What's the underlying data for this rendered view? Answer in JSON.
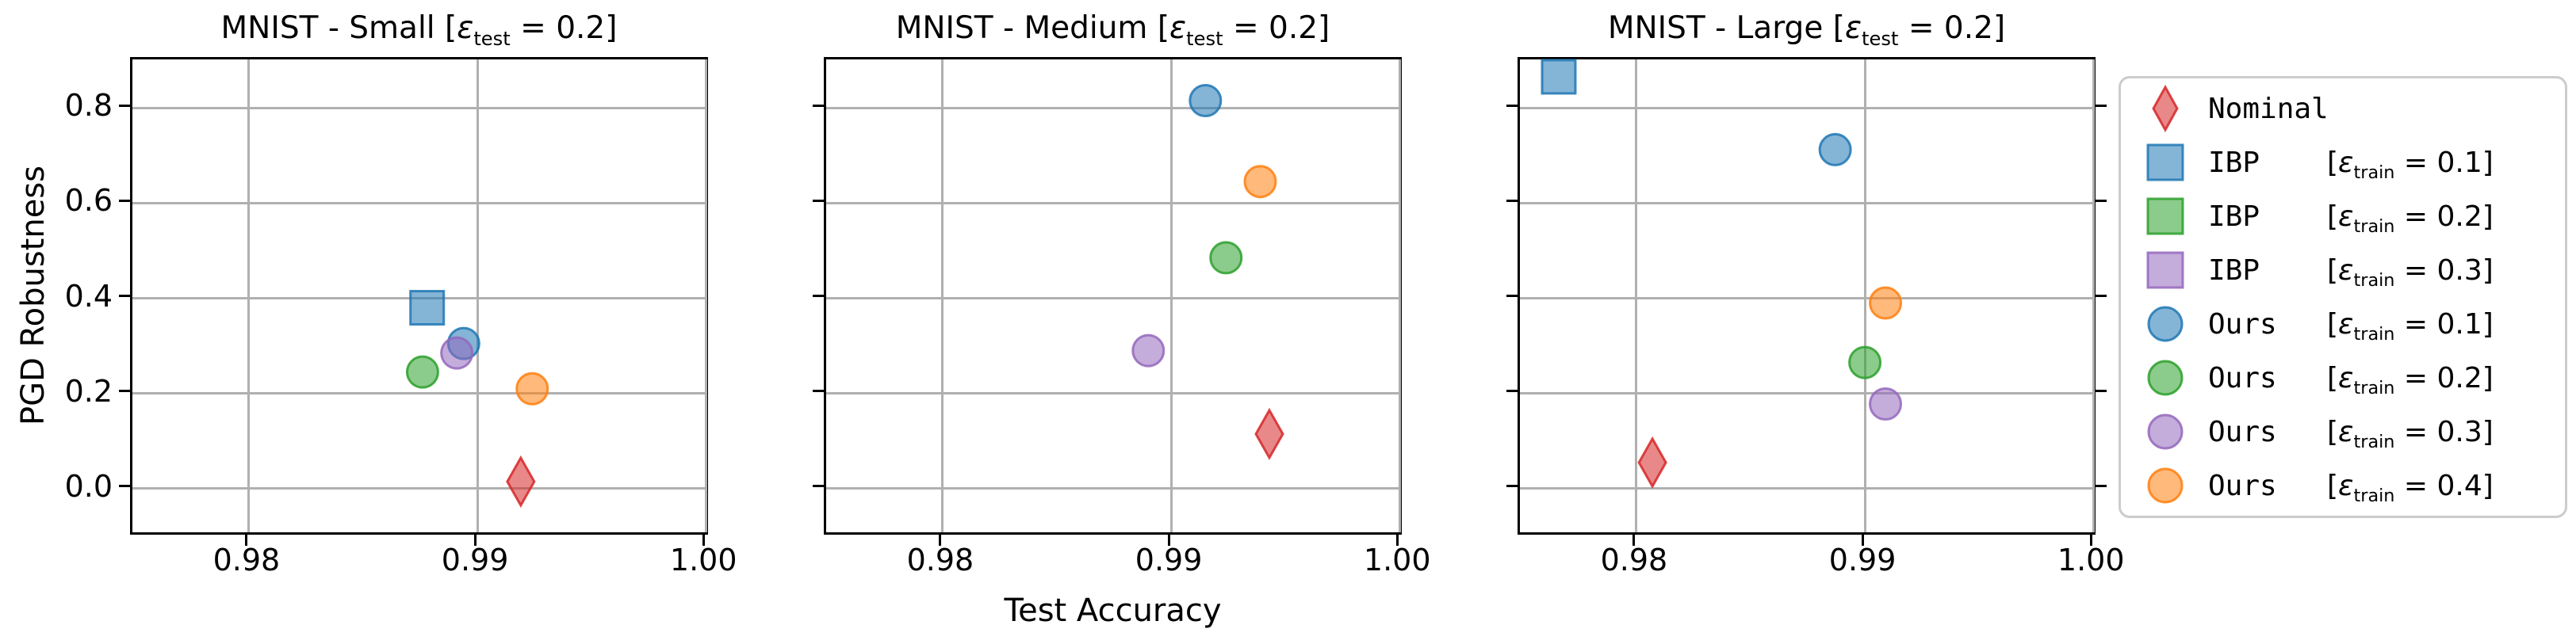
{
  "figure": {
    "background": "#ffffff"
  },
  "colors": {
    "blue": "#1f77b4",
    "orange": "#ff7f0e",
    "green": "#2ca02c",
    "red": "#d62728",
    "purple": "#9467bd",
    "grid": "#b0b0b0",
    "spine": "#000000",
    "legend_border": "#cccccc"
  },
  "fmt": {
    "lbrack": "[",
    "rbrack": "]",
    "equals": " = ",
    "eps": "ε"
  },
  "axis": {
    "x_label": "Test Accuracy",
    "y_label": "PGD Robustness",
    "x_ticks": [
      {
        "value": 0.98,
        "label": "0.98"
      },
      {
        "value": 0.99,
        "label": "0.99"
      },
      {
        "value": 1.0,
        "label": "1.00"
      }
    ],
    "y_ticks": [
      {
        "value": 0.0,
        "label": "0.0"
      },
      {
        "value": 0.2,
        "label": "0.2"
      },
      {
        "value": 0.4,
        "label": "0.4"
      },
      {
        "value": 0.6,
        "label": "0.6"
      },
      {
        "value": 0.8,
        "label": "0.8"
      }
    ]
  },
  "legend": {
    "entries": [
      {
        "name": "Nominal",
        "marker": "diamond",
        "color": "#d62728",
        "eps_sub": null,
        "eps_val": null
      },
      {
        "name": "IBP",
        "marker": "square",
        "color": "#1f77b4",
        "eps_sub": "train",
        "eps_val": "0.1"
      },
      {
        "name": "IBP",
        "marker": "square",
        "color": "#2ca02c",
        "eps_sub": "train",
        "eps_val": "0.2"
      },
      {
        "name": "IBP",
        "marker": "square",
        "color": "#9467bd",
        "eps_sub": "train",
        "eps_val": "0.3"
      },
      {
        "name": "Ours",
        "marker": "circle",
        "color": "#1f77b4",
        "eps_sub": "train",
        "eps_val": "0.1"
      },
      {
        "name": "Ours",
        "marker": "circle",
        "color": "#2ca02c",
        "eps_sub": "train",
        "eps_val": "0.2"
      },
      {
        "name": "Ours",
        "marker": "circle",
        "color": "#9467bd",
        "eps_sub": "train",
        "eps_val": "0.3"
      },
      {
        "name": "Ours",
        "marker": "circle",
        "color": "#ff7f0e",
        "eps_sub": "train",
        "eps_val": "0.4"
      }
    ]
  },
  "chart_data": {
    "type": "scatter",
    "xlabel": "Test Accuracy",
    "ylabel": "PGD Robustness",
    "xlim": [
      0.975,
      1.0
    ],
    "ylim": [
      -0.1,
      0.9
    ],
    "grid": true,
    "legend_position": "right-outside",
    "subplots": [
      {
        "title": "MNIST - Small [ε_test = 0.2]",
        "title_name": "MNIST - Small",
        "eps_sub": "test",
        "eps_val": "0.2",
        "show_y_tick_labels": true,
        "right_ticks": false,
        "series": [
          {
            "name": "Nominal",
            "marker": "diamond",
            "color": "#d62728",
            "points": [
              [
                0.9919,
                0.015
              ]
            ]
          },
          {
            "name": "IBP [eps_train = 0.1]",
            "marker": "square",
            "color": "#1f77b4",
            "points": [
              [
                0.9878,
                0.38
              ]
            ]
          },
          {
            "name": "IBP [eps_train = 0.2]",
            "marker": "square",
            "color": "#2ca02c",
            "points": []
          },
          {
            "name": "IBP [eps_train = 0.3]",
            "marker": "square",
            "color": "#9467bd",
            "points": []
          },
          {
            "name": "Ours [eps_train = 0.1]",
            "marker": "circle",
            "color": "#1f77b4",
            "points": [
              [
                0.9894,
                0.305
              ]
            ]
          },
          {
            "name": "Ours [eps_train = 0.2]",
            "marker": "circle",
            "color": "#2ca02c",
            "points": [
              [
                0.9876,
                0.245
              ]
            ]
          },
          {
            "name": "Ours [eps_train = 0.3]",
            "marker": "circle",
            "color": "#9467bd",
            "points": [
              [
                0.9891,
                0.285
              ]
            ]
          },
          {
            "name": "Ours [eps_train = 0.4]",
            "marker": "circle",
            "color": "#ff7f0e",
            "points": [
              [
                0.9924,
                0.21
              ]
            ]
          }
        ]
      },
      {
        "title": "MNIST - Medium [ε_test = 0.2]",
        "title_name": "MNIST - Medium",
        "eps_sub": "test",
        "eps_val": "0.2",
        "show_y_tick_labels": false,
        "right_ticks": false,
        "series": [
          {
            "name": "Nominal",
            "marker": "diamond",
            "color": "#d62728",
            "points": [
              [
                0.9943,
                0.115
              ]
            ]
          },
          {
            "name": "IBP [eps_train = 0.1]",
            "marker": "square",
            "color": "#1f77b4",
            "points": []
          },
          {
            "name": "IBP [eps_train = 0.2]",
            "marker": "square",
            "color": "#2ca02c",
            "points": []
          },
          {
            "name": "IBP [eps_train = 0.3]",
            "marker": "square",
            "color": "#9467bd",
            "points": []
          },
          {
            "name": "Ours [eps_train = 0.1]",
            "marker": "circle",
            "color": "#1f77b4",
            "points": [
              [
                0.9915,
                0.815
              ]
            ]
          },
          {
            "name": "Ours [eps_train = 0.2]",
            "marker": "circle",
            "color": "#2ca02c",
            "points": [
              [
                0.9924,
                0.485
              ]
            ]
          },
          {
            "name": "Ours [eps_train = 0.3]",
            "marker": "circle",
            "color": "#9467bd",
            "points": [
              [
                0.989,
                0.29
              ]
            ]
          },
          {
            "name": "Ours [eps_train = 0.4]",
            "marker": "circle",
            "color": "#ff7f0e",
            "points": [
              [
                0.9939,
                0.645
              ]
            ]
          }
        ]
      },
      {
        "title": "MNIST - Large [ε_test = 0.2]",
        "title_name": "MNIST - Large",
        "eps_sub": "test",
        "eps_val": "0.2",
        "show_y_tick_labels": false,
        "right_ticks": true,
        "series": [
          {
            "name": "Nominal",
            "marker": "diamond",
            "color": "#d62728",
            "points": [
              [
                0.9807,
                0.055
              ]
            ]
          },
          {
            "name": "IBP [eps_train = 0.1]",
            "marker": "square",
            "color": "#1f77b4",
            "points": [
              [
                0.9766,
                0.865
              ]
            ]
          },
          {
            "name": "IBP [eps_train = 0.2]",
            "marker": "square",
            "color": "#2ca02c",
            "points": []
          },
          {
            "name": "IBP [eps_train = 0.3]",
            "marker": "square",
            "color": "#9467bd",
            "points": []
          },
          {
            "name": "Ours [eps_train = 0.1]",
            "marker": "circle",
            "color": "#1f77b4",
            "points": [
              [
                0.9887,
                0.712
              ]
            ]
          },
          {
            "name": "Ours [eps_train = 0.2]",
            "marker": "circle",
            "color": "#2ca02c",
            "points": [
              [
                0.99,
                0.265
              ]
            ]
          },
          {
            "name": "Ours [eps_train = 0.3]",
            "marker": "circle",
            "color": "#9467bd",
            "points": [
              [
                0.9909,
                0.178
              ]
            ]
          },
          {
            "name": "Ours [eps_train = 0.4]",
            "marker": "circle",
            "color": "#ff7f0e",
            "points": [
              [
                0.9909,
                0.39
              ]
            ]
          }
        ]
      }
    ]
  }
}
